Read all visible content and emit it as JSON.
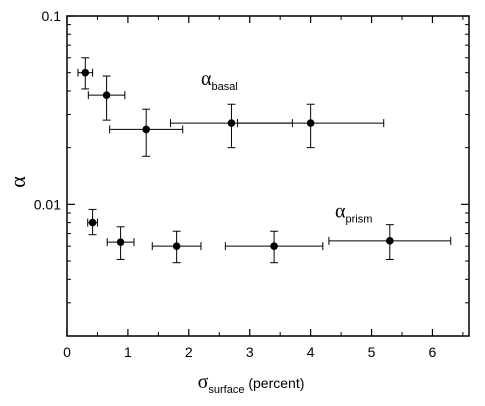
{
  "chart_data": {
    "type": "scatter",
    "x_scale": "linear",
    "y_scale": "log",
    "xlim": [
      0,
      6.6
    ],
    "ylim": [
      0.002,
      0.1
    ],
    "x_ticks": [
      0,
      1,
      2,
      3,
      4,
      5,
      6
    ],
    "x_tick_labels": [
      "0",
      "1",
      "2",
      "3",
      "4",
      "5",
      "6"
    ],
    "y_ticks": [
      0.01,
      0.1
    ],
    "y_tick_labels": [
      "0.01",
      "0.1"
    ],
    "xlabel": {
      "symbol": "σ",
      "subscript": "surface",
      "suffix": " (percent)"
    },
    "ylabel": "α",
    "grid": false,
    "error_bars": true,
    "series": [
      {
        "annotation": {
          "symbol": "α",
          "subscript": "basal",
          "at_x": 2.2,
          "at_y": 0.043
        },
        "points": [
          {
            "x": 0.3,
            "y": 0.05,
            "xerr": 0.12,
            "y_lo": 0.041,
            "y_hi": 0.06
          },
          {
            "x": 0.65,
            "y": 0.038,
            "xerr": 0.3,
            "y_lo": 0.028,
            "y_hi": 0.048
          },
          {
            "x": 1.3,
            "y": 0.025,
            "xerr": 0.6,
            "y_lo": 0.018,
            "y_hi": 0.032
          },
          {
            "x": 2.7,
            "y": 0.027,
            "xerr": 1.0,
            "y_lo": 0.02,
            "y_hi": 0.034
          },
          {
            "x": 4.0,
            "y": 0.027,
            "xerr": 1.2,
            "y_lo": 0.02,
            "y_hi": 0.034
          }
        ]
      },
      {
        "annotation": {
          "symbol": "α",
          "subscript": "prism",
          "at_x": 4.4,
          "at_y": 0.0085
        },
        "points": [
          {
            "x": 0.42,
            "y": 0.008,
            "xerr": 0.08,
            "y_lo": 0.0069,
            "y_hi": 0.0094
          },
          {
            "x": 0.88,
            "y": 0.0063,
            "xerr": 0.22,
            "y_lo": 0.0051,
            "y_hi": 0.0076
          },
          {
            "x": 1.8,
            "y": 0.006,
            "xerr": 0.4,
            "y_lo": 0.0049,
            "y_hi": 0.0072
          },
          {
            "x": 3.4,
            "y": 0.006,
            "xerr": 0.8,
            "y_lo": 0.0049,
            "y_hi": 0.0072
          },
          {
            "x": 5.3,
            "y": 0.0064,
            "xerr": 1.0,
            "y_lo": 0.0051,
            "y_hi": 0.0078
          }
        ]
      }
    ]
  }
}
